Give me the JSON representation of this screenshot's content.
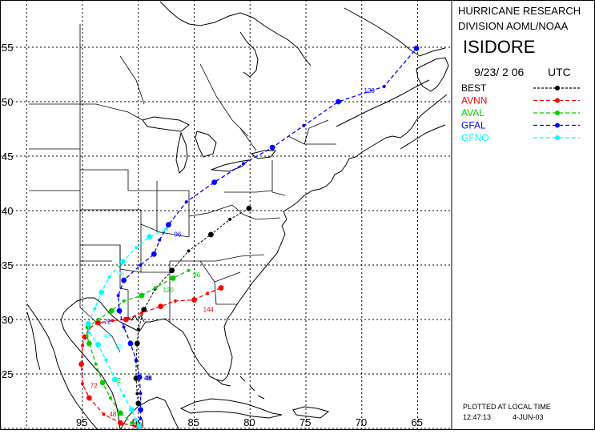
{
  "header": {
    "line1": "HURRICANE RESEARCH",
    "line2": "DIVISION AOML/NOAA",
    "storm_name": "ISIDORE",
    "datetime": "9/23/ 2 06",
    "timezone": "UTC"
  },
  "legend": [
    {
      "label": "BEST",
      "color": "#000000"
    },
    {
      "label": "AVNN",
      "color": "#ff0000"
    },
    {
      "label": "AVAL",
      "color": "#00cc00"
    },
    {
      "label": "GFAL",
      "color": "#0000ff"
    },
    {
      "label": "GFNO",
      "color": "#00ffff"
    }
  ],
  "footer": {
    "plotted": "PLOTTED AT LOCAL TIME",
    "time": "12:47:13",
    "date": "4-JUN-03"
  },
  "axes": {
    "lat_labels": [
      "55",
      "50",
      "45",
      "40",
      "35",
      "30",
      "25"
    ],
    "lon_labels": [
      "95",
      "90",
      "85",
      "80",
      "75",
      "70",
      "65"
    ]
  },
  "tracks": {
    "BEST": {
      "color": "#000000",
      "points": [
        [
          90.0,
          22.3
        ],
        [
          90.1,
          23.2
        ],
        [
          90.2,
          24.6
        ],
        [
          90.2,
          26.2
        ],
        [
          90.1,
          27.8
        ],
        [
          90.0,
          29.1
        ],
        [
          89.5,
          30.9
        ],
        [
          88.5,
          32.8
        ],
        [
          87.0,
          34.5
        ],
        [
          85.5,
          36.3
        ],
        [
          83.5,
          37.8
        ],
        [
          81.8,
          39.2
        ],
        [
          80.1,
          40.2
        ]
      ],
      "labels": [
        {
          "text": "48",
          "lon": 89.4,
          "lat": 24.4
        }
      ]
    },
    "AVNN": {
      "color": "#ff0000",
      "points": [
        [
          89.8,
          20.2
        ],
        [
          90.3,
          20.2
        ],
        [
          91.6,
          20.5
        ],
        [
          93.1,
          21.3
        ],
        [
          94.4,
          22.8
        ],
        [
          95.0,
          24.1
        ],
        [
          95.1,
          25.9
        ],
        [
          95.0,
          27.6
        ],
        [
          94.8,
          28.4
        ],
        [
          94.4,
          29.2
        ],
        [
          93.6,
          29.7
        ],
        [
          92.3,
          29.9
        ],
        [
          91.1,
          30.0
        ],
        [
          89.7,
          30.6
        ],
        [
          88.0,
          31.2
        ],
        [
          86.7,
          31.7
        ],
        [
          85.0,
          31.8
        ],
        [
          83.8,
          32.4
        ],
        [
          82.6,
          32.9
        ]
      ],
      "labels": [
        {
          "text": "144",
          "lon": 84.2,
          "lat": 30.7
        },
        {
          "text": "72",
          "lon": 94.3,
          "lat": 23.7
        },
        {
          "text": "48",
          "lon": 92.6,
          "lat": 21.1
        }
      ]
    },
    "AVAL": {
      "color": "#00cc00",
      "points": [
        [
          89.9,
          20.2
        ],
        [
          90.6,
          20.5
        ],
        [
          91.6,
          21.4
        ],
        [
          92.5,
          22.8
        ],
        [
          93.2,
          24.2
        ],
        [
          93.8,
          25.9
        ],
        [
          94.4,
          27.8
        ],
        [
          94.6,
          28.5
        ],
        [
          94.5,
          29.3
        ],
        [
          93.6,
          30.0
        ],
        [
          92.4,
          30.8
        ],
        [
          91.3,
          31.7
        ],
        [
          89.7,
          32.2
        ],
        [
          88.5,
          32.9
        ],
        [
          86.9,
          33.8
        ],
        [
          85.5,
          34.5
        ]
      ],
      "labels": [
        {
          "text": "120",
          "lon": 87.8,
          "lat": 32.5
        },
        {
          "text": "96",
          "lon": 85.1,
          "lat": 33.9
        },
        {
          "text": "72",
          "lon": 92.2,
          "lat": 24.2
        }
      ]
    },
    "GFAL": {
      "color": "#0000ff",
      "points": [
        [
          89.9,
          20.2
        ],
        [
          89.8,
          20.9
        ],
        [
          89.8,
          21.7
        ],
        [
          89.8,
          23.2
        ],
        [
          89.9,
          24.7
        ],
        [
          90.2,
          26.3
        ],
        [
          90.7,
          27.8
        ],
        [
          91.3,
          29.3
        ],
        [
          91.7,
          30.8
        ],
        [
          91.8,
          32.2
        ],
        [
          91.3,
          33.6
        ],
        [
          89.8,
          35.0
        ],
        [
          88.6,
          36.0
        ],
        [
          88.1,
          37.3
        ],
        [
          87.3,
          38.7
        ],
        [
          85.7,
          40.8
        ],
        [
          83.2,
          42.6
        ],
        [
          80.6,
          44.3
        ],
        [
          78.0,
          45.8
        ],
        [
          75.2,
          47.8
        ],
        [
          72.1,
          50.0
        ],
        [
          68.0,
          51.4
        ],
        [
          65.1,
          54.9
        ]
      ],
      "labels": [
        {
          "text": "120",
          "lon": 69.8,
          "lat": 50.8
        },
        {
          "text": "96",
          "lon": 86.8,
          "lat": 37.6
        },
        {
          "text": "48",
          "lon": 89.5,
          "lat": 24.4
        },
        {
          "text": "72",
          "lon": 93.1,
          "lat": 29.6
        }
      ]
    },
    "GFNO": {
      "color": "#00ffff",
      "points": [
        [
          89.9,
          20.2
        ],
        [
          90.2,
          20.8
        ],
        [
          90.6,
          21.7
        ],
        [
          91.3,
          23.0
        ],
        [
          92.1,
          24.5
        ],
        [
          92.9,
          26.3
        ],
        [
          93.6,
          27.7
        ],
        [
          94.4,
          28.8
        ],
        [
          94.5,
          29.6
        ],
        [
          93.9,
          31.0
        ],
        [
          93.3,
          32.5
        ],
        [
          92.6,
          33.9
        ],
        [
          91.4,
          35.3
        ],
        [
          90.2,
          36.6
        ],
        [
          89.0,
          37.6
        ],
        [
          87.5,
          38.3
        ]
      ],
      "labels": [
        {
          "text": "72",
          "lon": 92.1,
          "lat": 27.3
        },
        {
          "text": "96",
          "lon": 91.9,
          "lat": 34.0
        },
        {
          "text": "48",
          "lon": 93.1,
          "lat": 28.3
        }
      ]
    }
  }
}
